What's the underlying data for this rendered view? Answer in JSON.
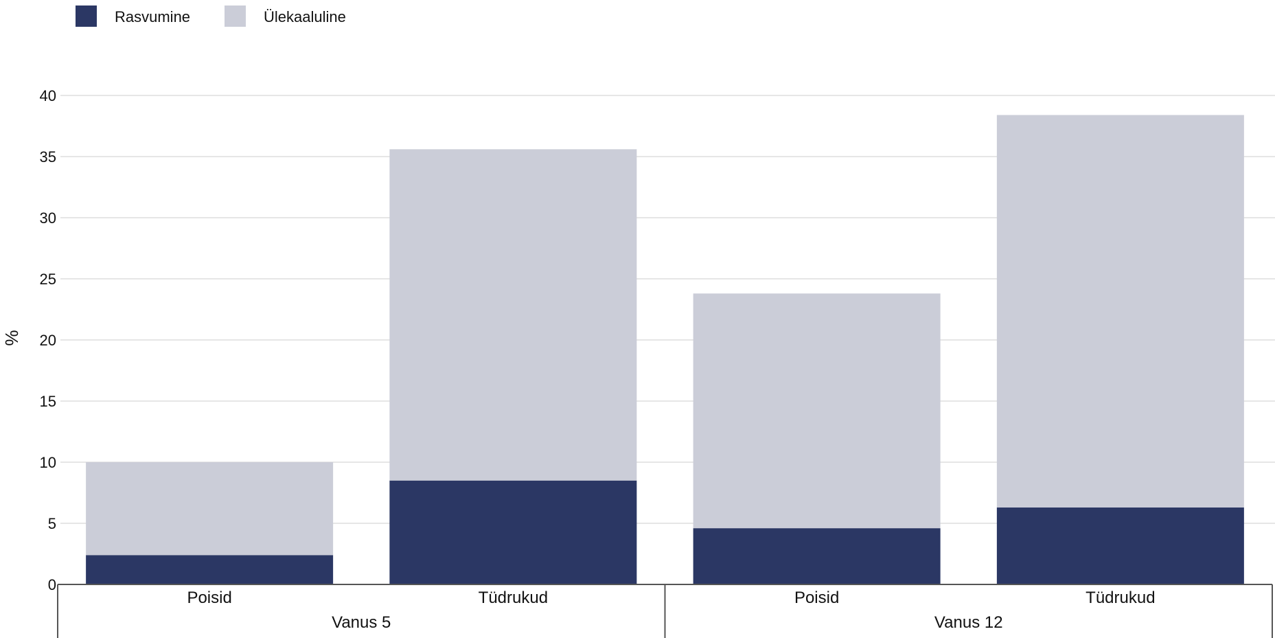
{
  "chart_data": {
    "type": "bar",
    "stacked": true,
    "title": "",
    "ylabel": "%",
    "ylim": [
      0,
      40
    ],
    "yticks": [
      0,
      5,
      10,
      15,
      20,
      25,
      30,
      35,
      40
    ],
    "grid": true,
    "legend_position": "top-left",
    "groups": [
      {
        "label": "Vanus 5",
        "categories": [
          "Poisid",
          "Tüdrukud"
        ]
      },
      {
        "label": "Vanus 12",
        "categories": [
          "Poisid",
          "Tüdrukud"
        ]
      }
    ],
    "categories": [
      "Poisid",
      "Tüdrukud",
      "Poisid",
      "Tüdrukud"
    ],
    "series": [
      {
        "name": "Rasvumine",
        "color": "#2b3764",
        "values": [
          2.4,
          8.5,
          4.6,
          6.3
        ]
      },
      {
        "name": "Ülekaaluline",
        "color": "#cbcdd8",
        "values": [
          7.6,
          27.1,
          19.2,
          32.1
        ]
      }
    ]
  }
}
